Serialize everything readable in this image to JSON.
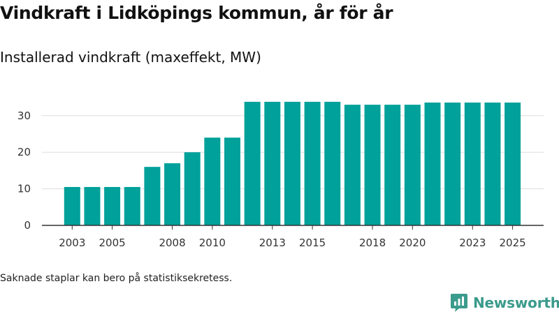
{
  "title": "Vindkraft i Lidköpings kommun, år för år",
  "subtitle": "Installerad vindkraft (maxeffekt, MW)",
  "footnote": "Saknade staplar kan bero på statistiksekretess.",
  "brand": {
    "name": "Newsworthy",
    "icon": "newsworthy-logo-icon"
  },
  "colors": {
    "bar": "#00a19a",
    "grid": "#dddddd",
    "axis": "#333333",
    "brand": "#3b9b8c"
  },
  "chart_data": {
    "type": "bar",
    "title": "Vindkraft i Lidköpings kommun, år för år",
    "subtitle": "Installerad vindkraft (maxeffekt, MW)",
    "xlabel": "",
    "ylabel": "",
    "ylim": [
      0,
      36
    ],
    "yticks": [
      0,
      10,
      20,
      30
    ],
    "grid": true,
    "categories": [
      2003,
      2004,
      2005,
      2006,
      2007,
      2008,
      2009,
      2010,
      2011,
      2012,
      2013,
      2014,
      2015,
      2016,
      2017,
      2018,
      2019,
      2020,
      2021,
      2022,
      2023,
      2024,
      2025
    ],
    "xtick_labels": [
      "2003",
      "2005",
      "2008",
      "2010",
      "2013",
      "2015",
      "2018",
      "2020",
      "2023",
      "2025"
    ],
    "series": [
      {
        "name": "Installerad vindkraft (MW)",
        "values": [
          10.5,
          10.5,
          10.5,
          10.5,
          16,
          17,
          20,
          24,
          24,
          33.8,
          33.8,
          33.8,
          33.8,
          33.8,
          33,
          33,
          33,
          33,
          33.6,
          33.6,
          33.6,
          33.6,
          33.6
        ]
      }
    ]
  }
}
